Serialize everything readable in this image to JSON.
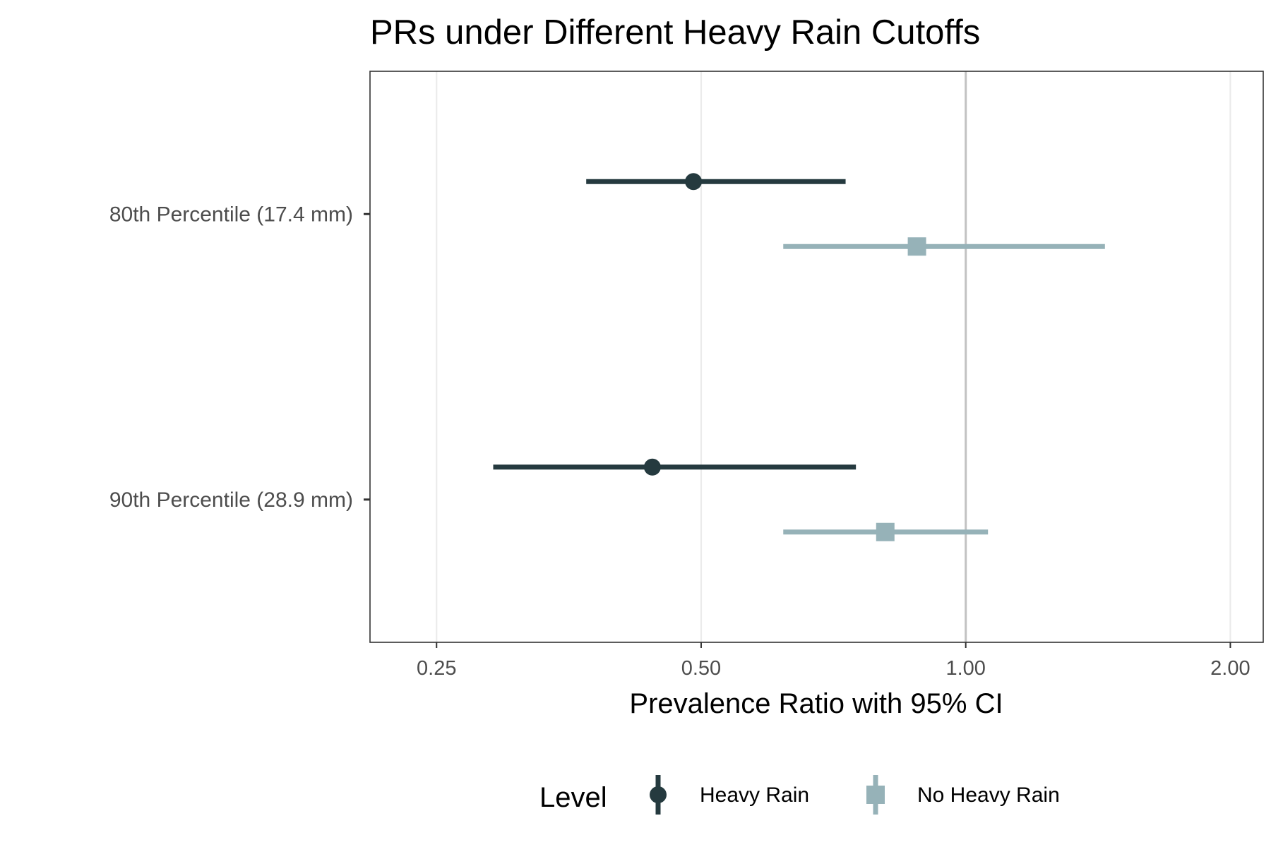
{
  "chart_data": {
    "type": "forest",
    "title": "PRs under Different Heavy Rain Cutoffs",
    "xlabel": "Prevalence Ratio with 95% CI",
    "ylabel": "",
    "x_scale": "log2",
    "xlim": [
      0.21,
      2.18
    ],
    "x_ticks": [
      0.25,
      0.5,
      1.0,
      2.0
    ],
    "x_tick_labels": [
      "0.25",
      "0.50",
      "1.00",
      "2.00"
    ],
    "reference_line": 1.0,
    "grid": "vertical-major",
    "categories": [
      "80th Percentile (17.4 mm)",
      "90th Percentile (28.9 mm)"
    ],
    "legend": {
      "title": "Level",
      "placement": "bottom"
    },
    "series": [
      {
        "name": "Heavy Rain",
        "color": "#253a3f",
        "marker": "circle",
        "points": [
          {
            "category": "80th Percentile (17.4 mm)",
            "estimate": 0.49,
            "lower": 0.37,
            "upper": 0.73
          },
          {
            "category": "90th Percentile (28.9 mm)",
            "estimate": 0.44,
            "lower": 0.29,
            "upper": 0.75
          }
        ]
      },
      {
        "name": "No Heavy Rain",
        "color": "#96b2b8",
        "marker": "square",
        "points": [
          {
            "category": "80th Percentile (17.4 mm)",
            "estimate": 0.88,
            "lower": 0.62,
            "upper": 1.44
          },
          {
            "category": "90th Percentile (28.9 mm)",
            "estimate": 0.81,
            "lower": 0.62,
            "upper": 1.06
          }
        ]
      }
    ]
  }
}
